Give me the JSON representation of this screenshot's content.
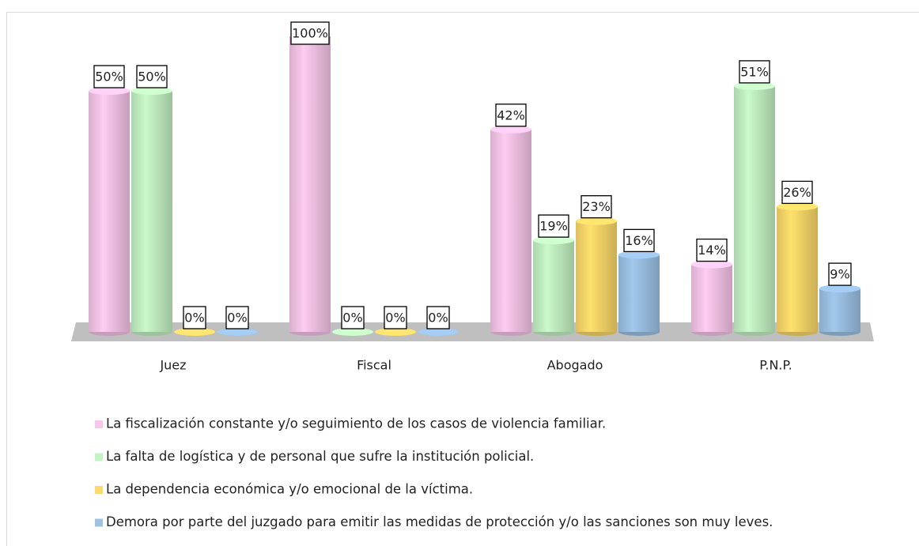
{
  "chart_data": {
    "type": "bar3d",
    "categories": [
      "Juez",
      "Fiscal",
      "Abogado",
      "P.N.P."
    ],
    "series": [
      {
        "name": "La fiscalización constante y/o seguimiento de los casos de violencia familiar.",
        "color": "#f7c6ea",
        "values": [
          50,
          100,
          42,
          14
        ],
        "value_labels": [
          "50%",
          "100%",
          "42%",
          "14%"
        ]
      },
      {
        "name": "La falta de logística y de personal que sufre la institución policial.",
        "color": "#c4f2c4",
        "values": [
          50,
          0,
          19,
          51
        ],
        "value_labels": [
          "50%",
          "0%",
          "19%",
          "51%"
        ]
      },
      {
        "name": "La dependencia económica y/o emocional de la víctima.",
        "color": "#fcd96a",
        "values": [
          0,
          0,
          23,
          26
        ],
        "value_labels": [
          "0%",
          "0%",
          "23%",
          "26%"
        ]
      },
      {
        "name": "Demora por parte del juzgado para emitir las medidas de protección y/o las sanciones son muy leves.",
        "color": "#9dc2e6",
        "values": [
          0,
          0,
          16,
          9
        ],
        "value_labels": [
          "0%",
          "0%",
          "16%",
          "9%"
        ]
      }
    ]
  }
}
